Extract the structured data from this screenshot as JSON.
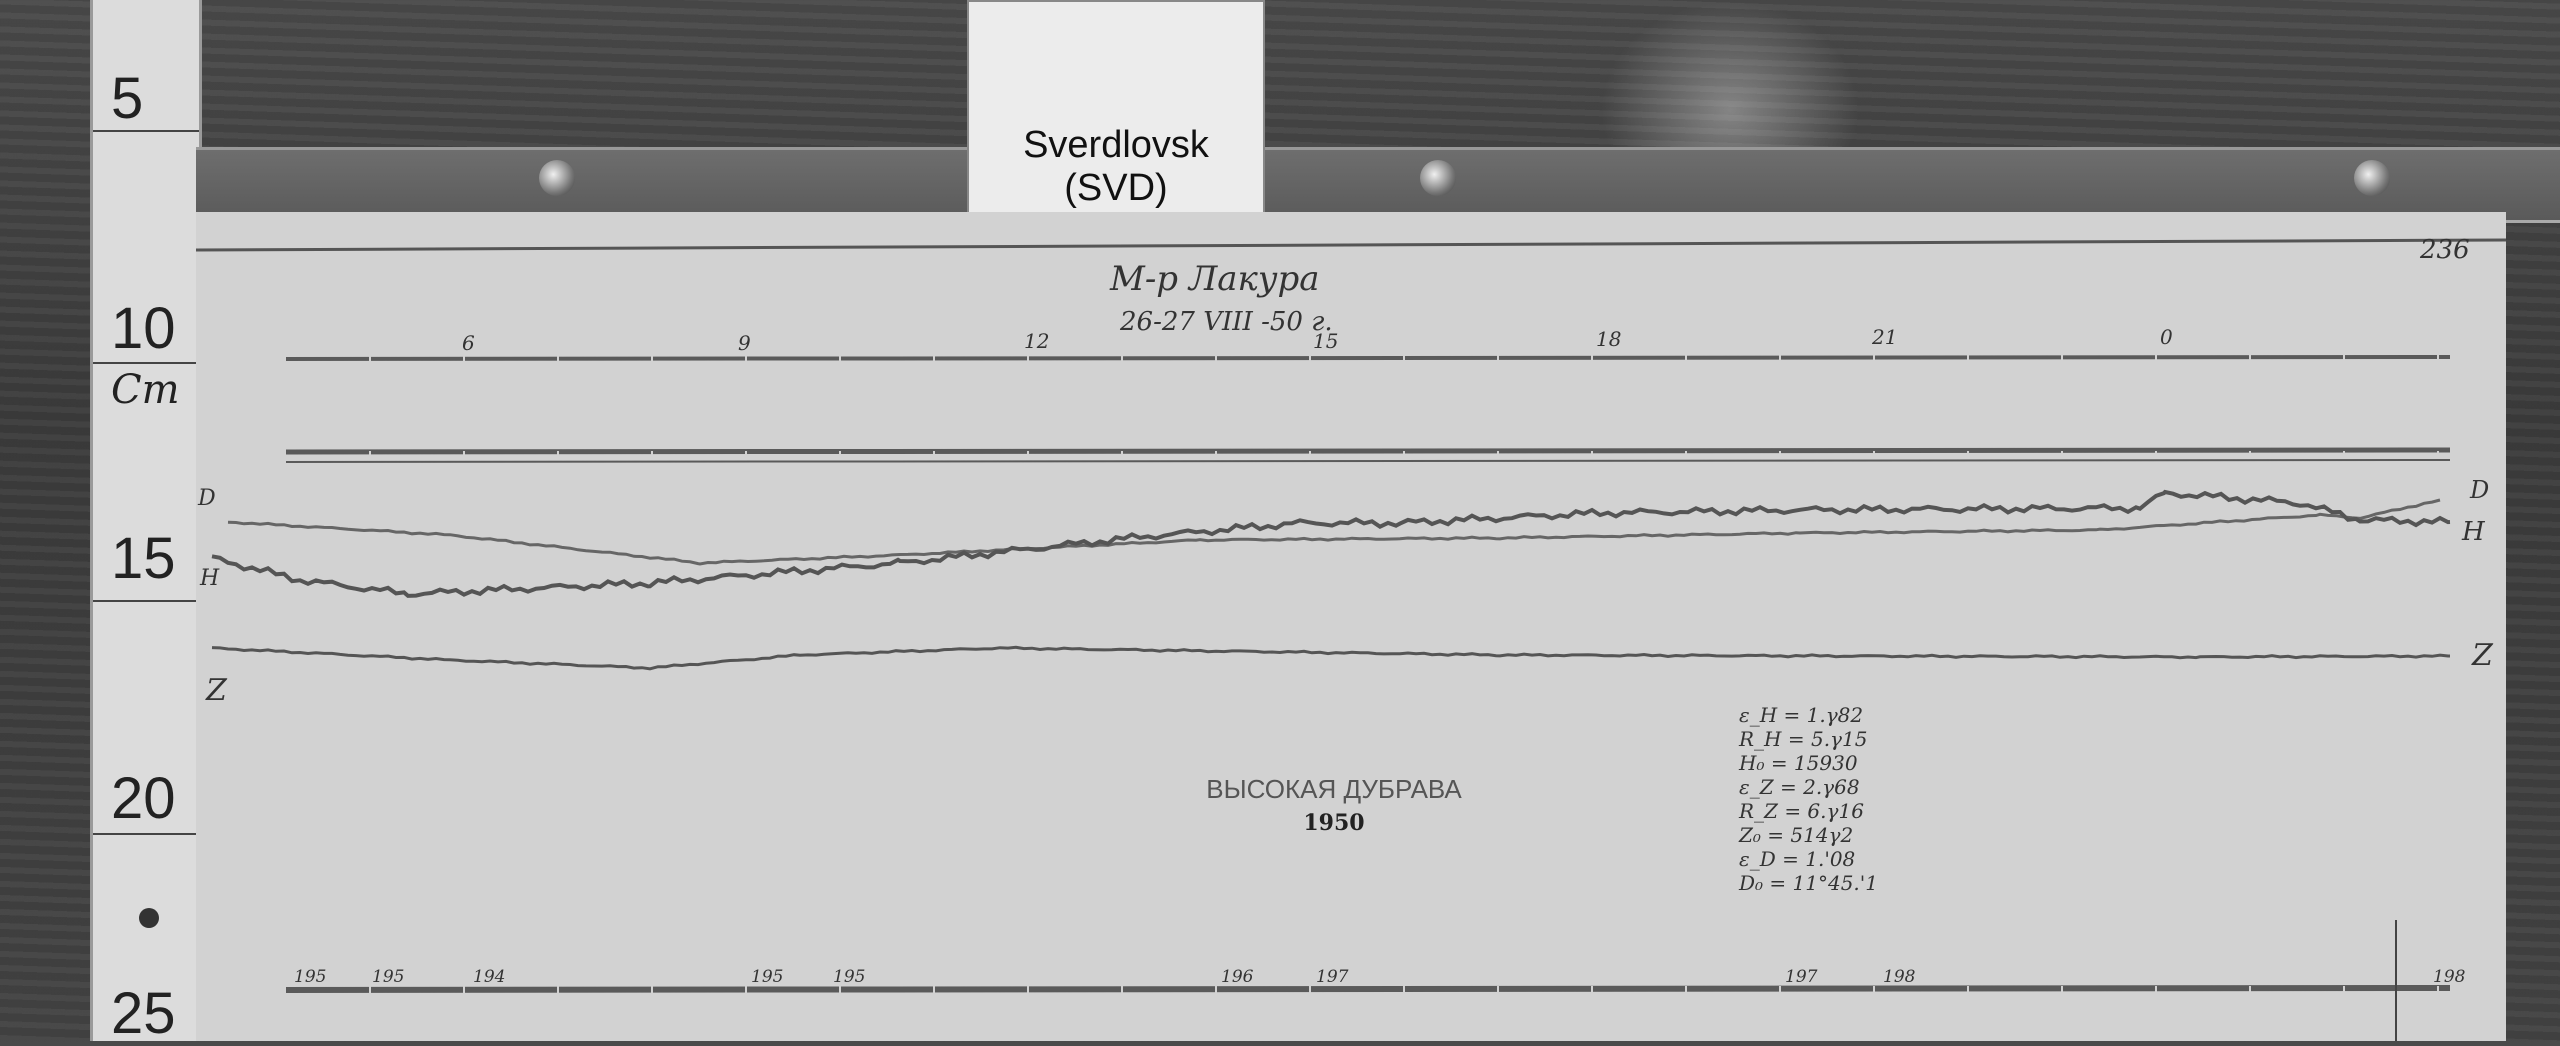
{
  "ruler": {
    "numbers": [
      "5",
      "10",
      "15",
      "20",
      "25"
    ],
    "unit": "Cm"
  },
  "label_card": {
    "text": "Sverdlovsk (SVD)"
  },
  "header": {
    "observatory": "М-р Лакура",
    "date": "26-27 VIII -50 г."
  },
  "sheet_number": "236",
  "hour_marks": [
    "6",
    "9",
    "12",
    "15",
    "18",
    "21",
    "0"
  ],
  "trace_labels": {
    "right": [
      "D",
      "H",
      "Z"
    ],
    "left": [
      "D",
      "H",
      "Z"
    ]
  },
  "station": {
    "name": "ВЫСОКАЯ ДУБРАВА",
    "year": "1950"
  },
  "parameters": [
    "ε_H = 1.γ82",
    "R_H = 5.γ15",
    "H₀ = 15930",
    "ε_Z = 2.γ68",
    "R_Z = 6.γ16",
    "Z₀ = 514γ2",
    "ε_D = 1.'08",
    "D₀ = 11°45.'1"
  ],
  "temperature_marks": [
    "195",
    "195",
    "194",
    "195",
    "195",
    "196",
    "197",
    "197",
    "198",
    "198"
  ],
  "colors": {
    "paper": "#d2d2d2",
    "trace": "#555555",
    "background": "#404040"
  }
}
